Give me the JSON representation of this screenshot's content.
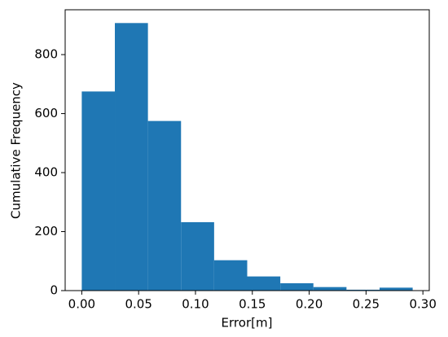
{
  "chart_data": {
    "type": "histogram",
    "x_label": "Error[m]",
    "y_label": "Cumulative Frequency",
    "bins": [
      0,
      0.0291,
      0.0582,
      0.0873,
      0.1164,
      0.1455,
      0.1746,
      0.2037,
      0.2328,
      0.2619,
      0.291
    ],
    "values": [
      675,
      907,
      575,
      232,
      103,
      48,
      25,
      12,
      3,
      10
    ],
    "color": "#1f77b4",
    "xlim": [
      -0.0146,
      0.3056
    ],
    "xticks": [
      {
        "value": 0,
        "label": "0.00"
      },
      {
        "value": 0.05,
        "label": "0.05"
      },
      {
        "value": 0.1,
        "label": "0.10"
      },
      {
        "value": 0.15,
        "label": "0.15"
      },
      {
        "value": 0.2,
        "label": "0.20"
      },
      {
        "value": 0.25,
        "label": "0.25"
      },
      {
        "value": 0.3,
        "label": "0.30"
      }
    ],
    "ylim": [
      0,
      952
    ],
    "yticks": [
      0,
      200,
      400,
      600,
      800
    ],
    "grid": false
  }
}
